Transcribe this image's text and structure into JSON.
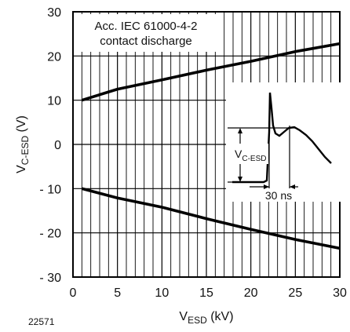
{
  "chart_data": {
    "type": "line",
    "figure_id": "22571",
    "annotation_lines": [
      "Acc. IEC 61000-4-2",
      "contact discharge"
    ],
    "xlabel_main": "V",
    "xlabel_sub": "ESD",
    "xlabel_unit": " (kV)",
    "ylabel_main": "V",
    "ylabel_sub": "C-ESD",
    "ylabel_unit": " (V)",
    "xlim": [
      0,
      30
    ],
    "ylim": [
      -30,
      30
    ],
    "x_ticks": [
      0,
      5,
      10,
      15,
      20,
      25,
      30
    ],
    "x_tick_labels": [
      "0",
      "5",
      "10",
      "15",
      "20",
      "25",
      "30"
    ],
    "y_ticks": [
      30,
      20,
      10,
      0,
      -10,
      -20,
      -30
    ],
    "y_tick_labels": [
      "30",
      "20",
      "10",
      "0",
      "- 10",
      "- 20",
      "- 30"
    ],
    "grid": "dense vertical lines, horizontal at major ticks",
    "series": [
      {
        "x": [
          1,
          5,
          10,
          15,
          20,
          25,
          30
        ],
        "y": [
          10.0,
          12.5,
          14.6,
          16.8,
          18.8,
          21.0,
          22.8
        ]
      },
      {
        "x": [
          1,
          5,
          10,
          15,
          20,
          25,
          30
        ],
        "y": [
          -10.0,
          -12.1,
          -14.2,
          -16.8,
          -19.2,
          -21.5,
          -23.5
        ]
      }
    ],
    "inset": {
      "label_main": "V",
      "label_sub": "C-ESD",
      "time_label": "30 ns"
    }
  }
}
